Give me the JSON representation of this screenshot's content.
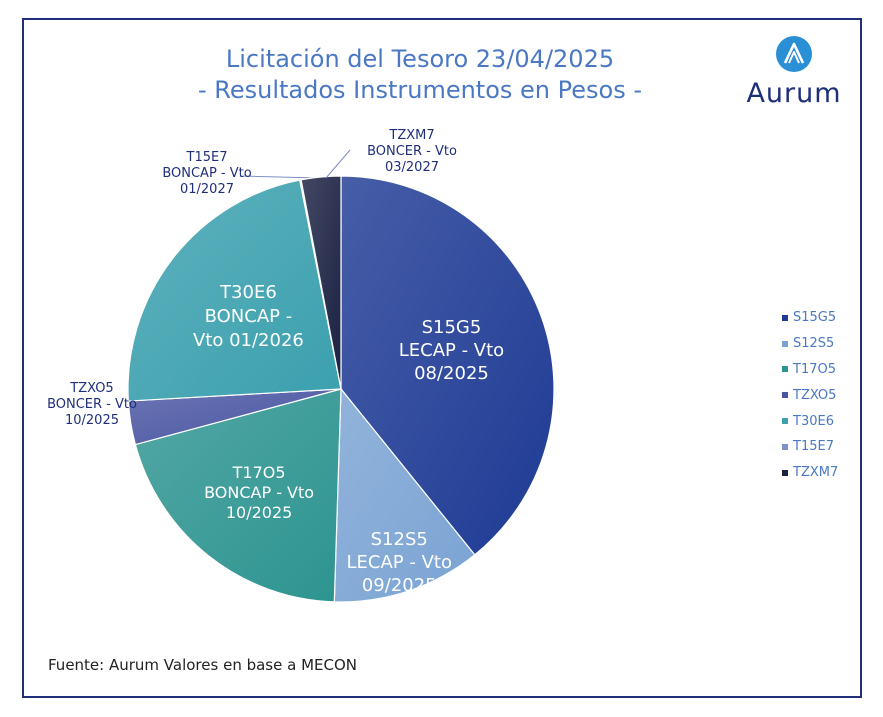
{
  "title_line1": "Licitación del Tesoro 23/04/2025",
  "title_line2": "- Resultados Instrumentos en Pesos -",
  "logo_text": "Aurum",
  "source": "Fuente: Aurum Valores en base a MECON",
  "chart_data": {
    "type": "pie",
    "title": "Licitación del Tesoro 23/04/2025 - Resultados Instrumentos en Pesos -",
    "legend_position": "right",
    "slices": [
      {
        "name": "S15G5",
        "label": [
          "S15G5",
          "LECAP - Vto",
          "08/2025"
        ],
        "value": 39.2,
        "color": "#1e3a94"
      },
      {
        "name": "S12S5",
        "label": [
          "S12S5",
          "LECAP - Vto",
          "09/2025"
        ],
        "value": 11.3,
        "color": "#7aa3d3"
      },
      {
        "name": "T17O5",
        "label": [
          "T17O5",
          "BONCAP - Vto",
          "10/2025"
        ],
        "value": 20.3,
        "color": "#2d9490"
      },
      {
        "name": "TZXO5",
        "label": [
          "TZXO5",
          "BONCER - Vto",
          "10/2025"
        ],
        "value": 3.3,
        "color": "#4a55a2"
      },
      {
        "name": "T30E6",
        "label": [
          "T30E6",
          "BONCAP -",
          "Vto 01/2026"
        ],
        "value": 22.8,
        "color": "#3ba0ae"
      },
      {
        "name": "T15E7",
        "label": [
          "T15E7",
          "BONCAP - Vto",
          "01/2027"
        ],
        "value": 0.1,
        "color": "#8090c8"
      },
      {
        "name": "TZXM7",
        "label": [
          "TZXM7",
          "BONCER - Vto",
          "03/2027"
        ],
        "value": 3.0,
        "color": "#1a2142"
      }
    ]
  }
}
